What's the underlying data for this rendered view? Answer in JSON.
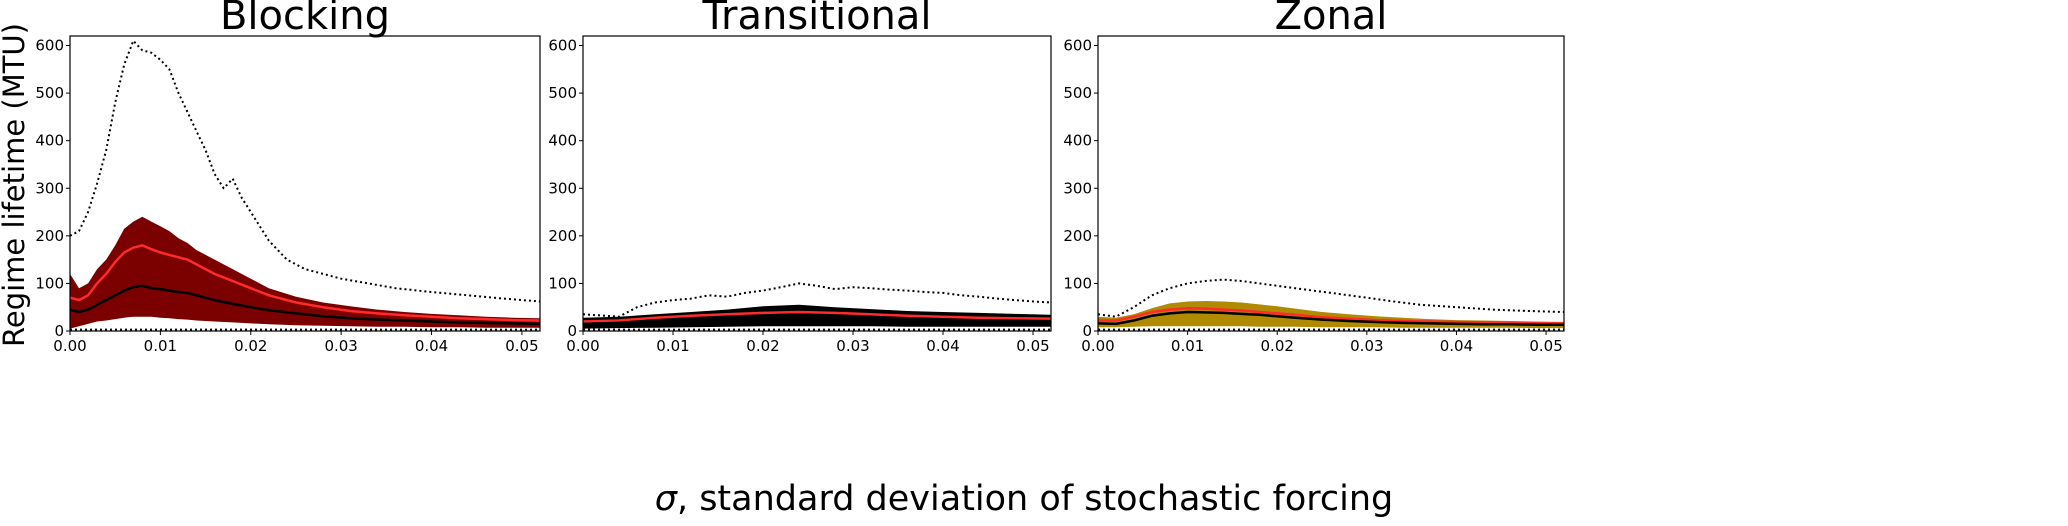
{
  "figure": {
    "ylabel": "Regime lifetime (MTU)",
    "xlabel_symbol": "σ",
    "xlabel_rest": ", standard deviation of stochastic forcing"
  },
  "chart_data": [
    {
      "type": "area",
      "title": "Blocking",
      "xlim": [
        0,
        0.052
      ],
      "ylim": [
        0,
        620
      ],
      "xticks": [
        0.0,
        0.01,
        0.02,
        0.03,
        0.04,
        0.05
      ],
      "xtick_labels": [
        "0.00",
        "0.01",
        "0.02",
        "0.03",
        "0.04",
        "0.05"
      ],
      "yticks": [
        0,
        100,
        200,
        300,
        400,
        500,
        600
      ],
      "ytick_labels": [
        "0",
        "100",
        "200",
        "300",
        "400",
        "500",
        "600"
      ],
      "grid": false,
      "colors": {
        "band": "#7b0000",
        "mean": "#ff2a2a",
        "median": "#000000",
        "max": "#000000"
      },
      "series": [
        {
          "role": "upper_band",
          "x": [
            0,
            0.001,
            0.002,
            0.003,
            0.004,
            0.005,
            0.006,
            0.007,
            0.008,
            0.009,
            0.01,
            0.011,
            0.012,
            0.013,
            0.014,
            0.016,
            0.018,
            0.02,
            0.022,
            0.025,
            0.028,
            0.031,
            0.034,
            0.037,
            0.04,
            0.043,
            0.046,
            0.049,
            0.052
          ],
          "y": [
            120,
            90,
            100,
            130,
            150,
            180,
            215,
            230,
            240,
            230,
            220,
            210,
            195,
            185,
            170,
            150,
            130,
            110,
            90,
            72,
            60,
            52,
            45,
            40,
            36,
            33,
            30,
            28,
            27
          ]
        },
        {
          "role": "lower_band",
          "x": [
            0,
            0.001,
            0.002,
            0.003,
            0.004,
            0.005,
            0.006,
            0.007,
            0.008,
            0.009,
            0.01,
            0.011,
            0.012,
            0.013,
            0.014,
            0.016,
            0.018,
            0.02,
            0.022,
            0.025,
            0.028,
            0.031,
            0.034,
            0.037,
            0.04,
            0.043,
            0.046,
            0.049,
            0.052
          ],
          "y": [
            5,
            10,
            15,
            20,
            22,
            25,
            28,
            30,
            30,
            30,
            28,
            27,
            25,
            24,
            22,
            20,
            18,
            16,
            14,
            12,
            11,
            10,
            9,
            9,
            8,
            8,
            7,
            7,
            7
          ]
        },
        {
          "role": "mean",
          "x": [
            0,
            0.001,
            0.002,
            0.003,
            0.004,
            0.005,
            0.006,
            0.007,
            0.008,
            0.009,
            0.01,
            0.011,
            0.012,
            0.013,
            0.014,
            0.016,
            0.018,
            0.02,
            0.022,
            0.025,
            0.028,
            0.031,
            0.034,
            0.037,
            0.04,
            0.043,
            0.046,
            0.049,
            0.052
          ],
          "y": [
            70,
            65,
            75,
            100,
            120,
            145,
            165,
            175,
            180,
            172,
            165,
            160,
            155,
            150,
            140,
            120,
            105,
            90,
            75,
            60,
            50,
            42,
            37,
            33,
            30,
            27,
            25,
            23,
            22
          ]
        },
        {
          "role": "median",
          "x": [
            0,
            0.001,
            0.002,
            0.003,
            0.004,
            0.005,
            0.006,
            0.007,
            0.008,
            0.009,
            0.01,
            0.011,
            0.012,
            0.013,
            0.014,
            0.016,
            0.018,
            0.02,
            0.022,
            0.025,
            0.028,
            0.031,
            0.034,
            0.037,
            0.04,
            0.043,
            0.046,
            0.049,
            0.052
          ],
          "y": [
            45,
            40,
            45,
            55,
            65,
            75,
            85,
            92,
            95,
            90,
            88,
            85,
            82,
            80,
            75,
            65,
            57,
            50,
            44,
            37,
            31,
            27,
            24,
            22,
            20,
            18,
            17,
            16,
            15
          ]
        },
        {
          "role": "max",
          "dash": true,
          "x": [
            0,
            0.001,
            0.002,
            0.003,
            0.004,
            0.005,
            0.006,
            0.007,
            0.008,
            0.009,
            0.01,
            0.011,
            0.012,
            0.013,
            0.014,
            0.015,
            0.016,
            0.017,
            0.018,
            0.019,
            0.02,
            0.022,
            0.024,
            0.026,
            0.028,
            0.03,
            0.033,
            0.036,
            0.04,
            0.044,
            0.048,
            0.052
          ],
          "y": [
            200,
            210,
            250,
            310,
            380,
            480,
            560,
            610,
            590,
            585,
            570,
            550,
            500,
            460,
            420,
            380,
            330,
            300,
            320,
            280,
            250,
            190,
            150,
            130,
            120,
            110,
            100,
            90,
            82,
            75,
            68,
            62
          ]
        },
        {
          "role": "min",
          "dash": true,
          "x": [
            0,
            0.052
          ],
          "y": [
            3,
            3
          ]
        }
      ]
    },
    {
      "type": "area",
      "title": "Transitional",
      "xlim": [
        0,
        0.052
      ],
      "ylim": [
        0,
        620
      ],
      "xticks": [
        0.0,
        0.01,
        0.02,
        0.03,
        0.04,
        0.05
      ],
      "xtick_labels": [
        "0.00",
        "0.01",
        "0.02",
        "0.03",
        "0.04",
        "0.05"
      ],
      "yticks": [
        0,
        100,
        200,
        300,
        400,
        500,
        600
      ],
      "ytick_labels": [
        "0",
        "100",
        "200",
        "300",
        "400",
        "500",
        "600"
      ],
      "grid": false,
      "colors": {
        "band": "#000000",
        "mean": "#ff2a2a",
        "median": "#000000",
        "max": "#000000"
      },
      "series": [
        {
          "role": "upper_band",
          "x": [
            0,
            0.004,
            0.008,
            0.012,
            0.016,
            0.02,
            0.024,
            0.028,
            0.032,
            0.036,
            0.04,
            0.044,
            0.048,
            0.052
          ],
          "y": [
            28,
            30,
            35,
            40,
            45,
            52,
            55,
            50,
            46,
            42,
            40,
            38,
            36,
            34
          ]
        },
        {
          "role": "lower_band",
          "x": [
            0,
            0.004,
            0.008,
            0.012,
            0.016,
            0.02,
            0.024,
            0.028,
            0.032,
            0.036,
            0.04,
            0.044,
            0.048,
            0.052
          ],
          "y": [
            5,
            6,
            7,
            8,
            9,
            10,
            10,
            10,
            10,
            9,
            9,
            9,
            9,
            9
          ]
        },
        {
          "role": "mean",
          "x": [
            0,
            0.004,
            0.008,
            0.012,
            0.016,
            0.02,
            0.024,
            0.028,
            0.032,
            0.036,
            0.04,
            0.044,
            0.048,
            0.052
          ],
          "y": [
            20,
            22,
            28,
            32,
            35,
            38,
            40,
            38,
            35,
            32,
            30,
            28,
            27,
            26
          ]
        },
        {
          "role": "median",
          "x": [
            0,
            0.004,
            0.008,
            0.012,
            0.016,
            0.02,
            0.024,
            0.028,
            0.032,
            0.036,
            0.04,
            0.044,
            0.048,
            0.052
          ],
          "y": [
            15,
            17,
            22,
            25,
            27,
            29,
            30,
            29,
            27,
            25,
            23,
            22,
            21,
            20
          ]
        },
        {
          "role": "max",
          "dash": true,
          "x": [
            0,
            0.004,
            0.006,
            0.008,
            0.01,
            0.012,
            0.014,
            0.016,
            0.018,
            0.02,
            0.022,
            0.024,
            0.026,
            0.028,
            0.03,
            0.032,
            0.034,
            0.036,
            0.038,
            0.04,
            0.042,
            0.044,
            0.046,
            0.048,
            0.05,
            0.052
          ],
          "y": [
            35,
            30,
            50,
            60,
            65,
            68,
            75,
            72,
            80,
            85,
            92,
            100,
            95,
            88,
            92,
            90,
            87,
            85,
            82,
            80,
            75,
            72,
            68,
            65,
            62,
            60
          ]
        },
        {
          "role": "min",
          "dash": true,
          "x": [
            0,
            0.052
          ],
          "y": [
            3,
            3
          ]
        }
      ]
    },
    {
      "type": "area",
      "title": "Zonal",
      "xlim": [
        0,
        0.052
      ],
      "ylim": [
        0,
        620
      ],
      "xticks": [
        0.0,
        0.01,
        0.02,
        0.03,
        0.04,
        0.05
      ],
      "xtick_labels": [
        "0.00",
        "0.01",
        "0.02",
        "0.03",
        "0.04",
        "0.05"
      ],
      "yticks": [
        0,
        100,
        200,
        300,
        400,
        500,
        600
      ],
      "ytick_labels": [
        "0",
        "100",
        "200",
        "300",
        "400",
        "500",
        "600"
      ],
      "grid": false,
      "colors": {
        "band": "#b08a00",
        "mean": "#ff2a2a",
        "median": "#000000",
        "max": "#000000"
      },
      "series": [
        {
          "role": "upper_band",
          "x": [
            0,
            0.002,
            0.004,
            0.006,
            0.008,
            0.01,
            0.012,
            0.014,
            0.016,
            0.018,
            0.02,
            0.022,
            0.025,
            0.028,
            0.031,
            0.034,
            0.037,
            0.04,
            0.043,
            0.046,
            0.049,
            0.052
          ],
          "y": [
            30,
            28,
            35,
            48,
            58,
            62,
            63,
            62,
            60,
            56,
            52,
            47,
            40,
            35,
            31,
            28,
            25,
            23,
            22,
            21,
            20,
            19
          ]
        },
        {
          "role": "lower_band",
          "x": [
            0,
            0.002,
            0.004,
            0.006,
            0.008,
            0.01,
            0.012,
            0.014,
            0.016,
            0.018,
            0.02,
            0.022,
            0.025,
            0.028,
            0.031,
            0.034,
            0.037,
            0.04,
            0.043,
            0.046,
            0.049,
            0.052
          ],
          "y": [
            8,
            8,
            9,
            10,
            10,
            10,
            10,
            10,
            10,
            9,
            9,
            9,
            8,
            8,
            8,
            7,
            7,
            7,
            7,
            7,
            6,
            6
          ]
        },
        {
          "role": "mean",
          "x": [
            0,
            0.002,
            0.004,
            0.006,
            0.008,
            0.01,
            0.012,
            0.014,
            0.016,
            0.018,
            0.02,
            0.022,
            0.025,
            0.028,
            0.031,
            0.034,
            0.037,
            0.04,
            0.043,
            0.046,
            0.049,
            0.052
          ],
          "y": [
            22,
            22,
            30,
            40,
            45,
            48,
            47,
            45,
            43,
            40,
            37,
            34,
            29,
            26,
            23,
            21,
            20,
            19,
            18,
            17,
            16,
            16
          ]
        },
        {
          "role": "median",
          "x": [
            0,
            0.002,
            0.004,
            0.006,
            0.008,
            0.01,
            0.012,
            0.014,
            0.016,
            0.018,
            0.02,
            0.022,
            0.025,
            0.028,
            0.031,
            0.034,
            0.037,
            0.04,
            0.043,
            0.046,
            0.049,
            0.052
          ],
          "y": [
            16,
            15,
            22,
            32,
            37,
            40,
            39,
            38,
            36,
            34,
            31,
            28,
            24,
            21,
            19,
            17,
            16,
            15,
            14,
            14,
            13,
            13
          ]
        },
        {
          "role": "max",
          "dash": true,
          "x": [
            0,
            0.002,
            0.004,
            0.006,
            0.008,
            0.01,
            0.012,
            0.014,
            0.016,
            0.018,
            0.02,
            0.022,
            0.024,
            0.026,
            0.028,
            0.03,
            0.033,
            0.036,
            0.04,
            0.044,
            0.048,
            0.052
          ],
          "y": [
            35,
            30,
            50,
            75,
            90,
            100,
            105,
            108,
            105,
            100,
            95,
            90,
            85,
            80,
            75,
            70,
            62,
            55,
            50,
            45,
            42,
            40
          ]
        },
        {
          "role": "min",
          "dash": true,
          "x": [
            0,
            0.052
          ],
          "y": [
            3,
            3
          ]
        }
      ]
    }
  ]
}
